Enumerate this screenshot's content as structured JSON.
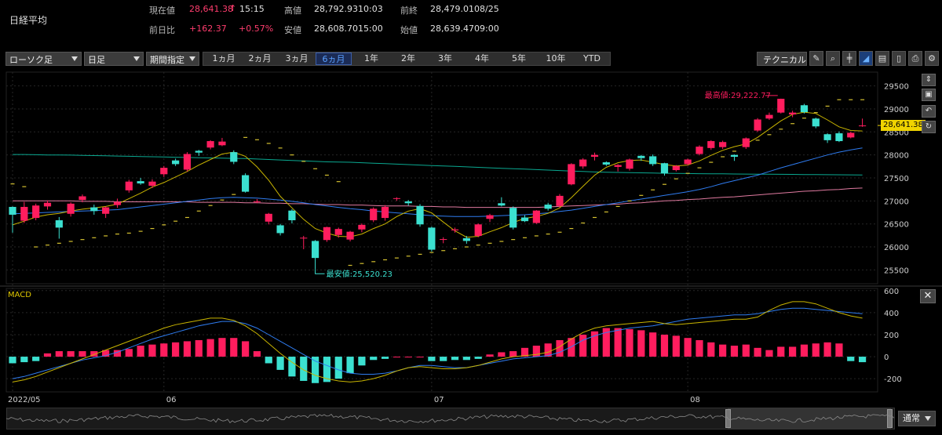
{
  "header": {
    "name": "日経平均",
    "current_label": "現在値",
    "current_value": "28,641.38",
    "current_arrow": "↑",
    "current_time": "15:15",
    "change_label": "前日比",
    "change_value": "+162.37",
    "change_pct": "+0.57%",
    "high_label": "高値",
    "high_value": "28,792.93",
    "high_time": "10:03",
    "low_label": "安値",
    "low_value": "28,608.70",
    "low_time": "15:00",
    "prev_label": "前終",
    "prev_value": "28,479.01",
    "prev_date": "08/25",
    "open_label": "始値",
    "open_value": "28,639.47",
    "open_time": "09:00"
  },
  "toolbar": {
    "chart_type": "ローソク足",
    "interval": "日足",
    "period_mode": "期間指定",
    "ranges": [
      "1ヵ月",
      "2ヵ月",
      "3ヵ月",
      "6ヵ月",
      "1年",
      "2年",
      "3年",
      "4年",
      "5年",
      "10年",
      "YTD"
    ],
    "active_range": "6ヵ月",
    "technical_label": "テクニカル"
  },
  "colors": {
    "up": "#ff1d5e",
    "down": "#3be0d0",
    "ma5": "#c8b400",
    "ma25": "#2f7cf0",
    "ma75": "#e07aa0",
    "ma200": "#0aa890",
    "parabolic": "#d4c030",
    "macd_line": "#2f7cf0",
    "signal_line": "#c8b400",
    "price_tag_bg": "#f0d400"
  },
  "chart_data": {
    "type": "candlestick",
    "price_ticks": [
      "29500",
      "29000",
      "28500",
      "28000",
      "27500",
      "27000",
      "26500",
      "26000",
      "25500"
    ],
    "ylim": [
      25200,
      29800
    ],
    "x_labels": [
      "2022/05",
      "06",
      "07",
      "08"
    ],
    "x_label_index": [
      0,
      13,
      36,
      58
    ],
    "max_annotation": "最高値:29,222.77",
    "min_annotation": "最安値:25,520.23",
    "last_price_tag": "28,641.38",
    "candles": [
      [
        26870,
        26700,
        26880,
        26310
      ],
      [
        26570,
        26870,
        26980,
        26520
      ],
      [
        26630,
        26900,
        26940,
        26580
      ],
      [
        26880,
        26960,
        27010,
        26810
      ],
      [
        26580,
        26420,
        26650,
        26180
      ],
      [
        26720,
        26940,
        26970,
        26660
      ],
      [
        27020,
        27100,
        27140,
        26970
      ],
      [
        26860,
        26780,
        26920,
        26700
      ],
      [
        26720,
        26860,
        26880,
        26630
      ],
      [
        26910,
        26980,
        27050,
        26850
      ],
      [
        27230,
        27420,
        27460,
        27180
      ],
      [
        27430,
        27380,
        27500,
        27350
      ],
      [
        27330,
        27420,
        27470,
        27280
      ],
      [
        27580,
        27720,
        27760,
        27520
      ],
      [
        27880,
        27800,
        27920,
        27760
      ],
      [
        27680,
        28020,
        28060,
        27640
      ],
      [
        28090,
        28050,
        28110,
        27980
      ],
      [
        28160,
        28300,
        28320,
        28120
      ],
      [
        28210,
        28290,
        28370,
        28190
      ],
      [
        28060,
        27850,
        28100,
        27800
      ],
      [
        27560,
        27200,
        27600,
        27180
      ],
      [
        26990,
        26990,
        27040,
        26950
      ],
      [
        26550,
        26720,
        26740,
        26490
      ],
      [
        26470,
        26300,
        26500,
        26250
      ],
      [
        26790,
        26580,
        26820,
        26510
      ],
      [
        26200,
        26200,
        26240,
        25950
      ],
      [
        26130,
        25760,
        26150,
        25520
      ],
      [
        26150,
        26430,
        26440,
        26110
      ],
      [
        26260,
        26390,
        26420,
        26200
      ],
      [
        26160,
        26330,
        26350,
        26120
      ],
      [
        26380,
        26480,
        26510,
        26320
      ],
      [
        26580,
        26830,
        26860,
        26540
      ],
      [
        26630,
        26870,
        26910,
        26570
      ],
      [
        27050,
        27060,
        27080,
        27000
      ],
      [
        26990,
        26950,
        27020,
        26900
      ],
      [
        26890,
        26490,
        26930,
        26440
      ],
      [
        26420,
        25940,
        26440,
        25900
      ],
      [
        26160,
        26170,
        26210,
        26080
      ],
      [
        26360,
        26380,
        26420,
        26310
      ],
      [
        26190,
        26130,
        26240,
        26070
      ],
      [
        26240,
        26490,
        26510,
        26210
      ],
      [
        26610,
        26690,
        26720,
        26540
      ],
      [
        26950,
        26900,
        27080,
        26880
      ],
      [
        26850,
        26420,
        26880,
        26380
      ],
      [
        26640,
        26560,
        26690,
        26540
      ],
      [
        26520,
        26790,
        26800,
        26500
      ],
      [
        26920,
        26830,
        26960,
        26790
      ],
      [
        26890,
        27110,
        27150,
        26860
      ],
      [
        27360,
        27800,
        27820,
        27340
      ],
      [
        27750,
        27900,
        27930,
        27700
      ],
      [
        27960,
        28000,
        28050,
        27880
      ],
      [
        27840,
        27790,
        27860,
        27760
      ],
      [
        27740,
        27780,
        27800,
        27640
      ],
      [
        27700,
        27900,
        27920,
        27660
      ],
      [
        27980,
        27930,
        28000,
        27870
      ],
      [
        27970,
        27800,
        28010,
        27760
      ],
      [
        27820,
        27600,
        27830,
        27550
      ],
      [
        27670,
        27760,
        27780,
        27640
      ],
      [
        27800,
        27900,
        27920,
        27770
      ],
      [
        28020,
        28180,
        28210,
        27990
      ],
      [
        28150,
        28300,
        28320,
        28110
      ],
      [
        28170,
        28280,
        28310,
        28130
      ],
      [
        28000,
        27960,
        28010,
        27870
      ],
      [
        28170,
        28360,
        28380,
        28130
      ],
      [
        28530,
        28770,
        28800,
        28500
      ],
      [
        28790,
        28870,
        28920,
        28760
      ],
      [
        28920,
        29220,
        29223,
        28900
      ],
      [
        28880,
        28920,
        28960,
        28820
      ],
      [
        29080,
        28930,
        29110,
        28900
      ],
      [
        28790,
        28620,
        28810,
        28580
      ],
      [
        28450,
        28320,
        28470,
        28260
      ],
      [
        28470,
        28300,
        28510,
        28280
      ],
      [
        28380,
        28480,
        28500,
        28360
      ],
      [
        28640,
        28640,
        28790,
        28610
      ]
    ],
    "ma5": [
      26480,
      26560,
      26650,
      26700,
      26730,
      26780,
      26820,
      26850,
      26880,
      26930,
      27050,
      27170,
      27300,
      27400,
      27520,
      27640,
      27780,
      27900,
      28020,
      28060,
      27970,
      27740,
      27450,
      27100,
      26850,
      26600,
      26400,
      26300,
      26230,
      26220,
      26280,
      26400,
      26500,
      26660,
      26780,
      26830,
      26740,
      26540,
      26350,
      26210,
      26230,
      26330,
      26420,
      26530,
      26620,
      26660,
      26730,
      26850,
      27070,
      27320,
      27560,
      27730,
      27830,
      27880,
      27890,
      27840,
      27790,
      27760,
      27780,
      27870,
      27990,
      28100,
      28180,
      28240,
      28380,
      28560,
      28740,
      28880,
      28930,
      28900,
      28760,
      28610,
      28530,
      28520
    ],
    "ma25": [
      26720,
      26730,
      26740,
      26750,
      26760,
      26770,
      26780,
      26790,
      26800,
      26810,
      26840,
      26870,
      26900,
      26930,
      26960,
      26990,
      27020,
      27050,
      27070,
      27080,
      27070,
      27060,
      27040,
      27020,
      26990,
      26960,
      26920,
      26890,
      26860,
      26830,
      26810,
      26780,
      26760,
      26740,
      26720,
      26700,
      26680,
      26670,
      26660,
      26660,
      26660,
      26670,
      26680,
      26690,
      26700,
      26720,
      26740,
      26770,
      26800,
      26840,
      26880,
      26920,
      26960,
      27000,
      27040,
      27080,
      27120,
      27160,
      27200,
      27250,
      27310,
      27380,
      27440,
      27500,
      27560,
      27640,
      27720,
      27790,
      27860,
      27930,
      28000,
      28060,
      28110,
      28150
    ],
    "ma75": [
      27000,
      27000,
      27000,
      27000,
      27000,
      27000,
      26990,
      26990,
      26990,
      26980,
      26980,
      26980,
      26980,
      26980,
      26980,
      26980,
      26970,
      26970,
      26970,
      26970,
      26960,
      26960,
      26950,
      26950,
      26940,
      26940,
      26930,
      26920,
      26920,
      26910,
      26910,
      26900,
      26890,
      26890,
      26890,
      26880,
      26880,
      26870,
      26870,
      26860,
      26860,
      26860,
      26860,
      26860,
      26860,
      26860,
      26870,
      26880,
      26890,
      26900,
      26910,
      26920,
      26930,
      26950,
      26960,
      26980,
      27000,
      27010,
      27030,
      27040,
      27060,
      27080,
      27090,
      27110,
      27130,
      27150,
      27170,
      27190,
      27210,
      27220,
      27240,
      27250,
      27270,
      27280
    ],
    "ma200": [
      28010,
      28010,
      28005,
      28000,
      28000,
      27995,
      27990,
      27985,
      27980,
      27975,
      27970,
      27965,
      27960,
      27955,
      27950,
      27945,
      27940,
      27935,
      27930,
      27925,
      27920,
      27910,
      27900,
      27890,
      27880,
      27870,
      27860,
      27850,
      27845,
      27840,
      27830,
      27820,
      27810,
      27800,
      27790,
      27780,
      27770,
      27760,
      27750,
      27740,
      27730,
      27720,
      27710,
      27700,
      27690,
      27680,
      27670,
      27660,
      27650,
      27640,
      27630,
      27625,
      27620,
      27615,
      27610,
      27605,
      27600,
      27598,
      27595,
      27592,
      27590,
      27588,
      27586,
      27584,
      27582,
      27580,
      27578,
      27576,
      27574,
      27572,
      27570,
      27568,
      27566,
      27564
    ],
    "parabolic": [
      27370,
      27310,
      26000,
      26040,
      26080,
      26120,
      26160,
      26200,
      26240,
      26280,
      26300,
      26340,
      26400,
      26480,
      26560,
      26640,
      26780,
      26900,
      27020,
      27140,
      28380,
      28330,
      28250,
      28150,
      28000,
      27860,
      27700,
      27560,
      27420,
      25600,
      25640,
      25680,
      25720,
      25760,
      25800,
      25840,
      25880,
      25920,
      25960,
      26000,
      26040,
      26080,
      26120,
      26160,
      26200,
      26240,
      26280,
      26320,
      26400,
      26520,
      26640,
      26760,
      26880,
      27000,
      27120,
      27240,
      27360,
      27480,
      27600,
      27720,
      27840,
      27960,
      28080,
      28200,
      28320,
      28440,
      28560,
      28680,
      28800,
      28920,
      29060,
      29200,
      29200,
      29200
    ],
    "macd_ticks": [
      "600",
      "400",
      "200",
      "0",
      "-200"
    ],
    "macd_ylim": [
      -320,
      620
    ],
    "macd": [
      -200,
      -180,
      -150,
      -120,
      -90,
      -60,
      -30,
      -10,
      10,
      40,
      80,
      120,
      160,
      190,
      220,
      250,
      280,
      300,
      320,
      320,
      300,
      260,
      200,
      140,
      80,
      20,
      -40,
      -80,
      -120,
      -150,
      -160,
      -160,
      -150,
      -130,
      -100,
      -80,
      -80,
      -90,
      -100,
      -100,
      -80,
      -60,
      -40,
      -20,
      -10,
      0,
      10,
      40,
      90,
      150,
      190,
      220,
      240,
      260,
      270,
      280,
      300,
      320,
      340,
      350,
      360,
      370,
      380,
      380,
      390,
      410,
      430,
      440,
      440,
      430,
      420,
      410,
      400,
      390
    ],
    "signal": [
      -230,
      -210,
      -180,
      -140,
      -100,
      -60,
      -20,
      20,
      60,
      100,
      140,
      180,
      220,
      260,
      290,
      310,
      330,
      350,
      350,
      330,
      280,
      210,
      120,
      30,
      -50,
      -120,
      -170,
      -200,
      -220,
      -230,
      -220,
      -200,
      -170,
      -130,
      -100,
      -90,
      -100,
      -110,
      -110,
      -100,
      -80,
      -50,
      -20,
      0,
      10,
      20,
      40,
      90,
      160,
      220,
      260,
      280,
      290,
      300,
      310,
      320,
      300,
      290,
      300,
      310,
      320,
      330,
      340,
      340,
      360,
      420,
      470,
      500,
      500,
      480,
      440,
      400,
      370,
      350
    ],
    "histogram": [
      -60,
      -50,
      -40,
      30,
      50,
      50,
      50,
      50,
      60,
      60,
      70,
      100,
      110,
      120,
      130,
      140,
      150,
      160,
      170,
      170,
      140,
      50,
      -60,
      -120,
      -180,
      -220,
      -240,
      -230,
      -200,
      -150,
      -80,
      -30,
      -20,
      0,
      0,
      0,
      -40,
      -40,
      -30,
      -30,
      -20,
      20,
      40,
      50,
      80,
      100,
      120,
      150,
      170,
      200,
      230,
      260,
      260,
      250,
      240,
      220,
      200,
      190,
      170,
      150,
      130,
      110,
      100,
      110,
      80,
      60,
      90,
      90,
      110,
      120,
      130,
      120,
      -40,
      -50
    ]
  },
  "macd_panel": {
    "title": "MACD"
  },
  "bottom": {
    "mode_label": "通常"
  }
}
